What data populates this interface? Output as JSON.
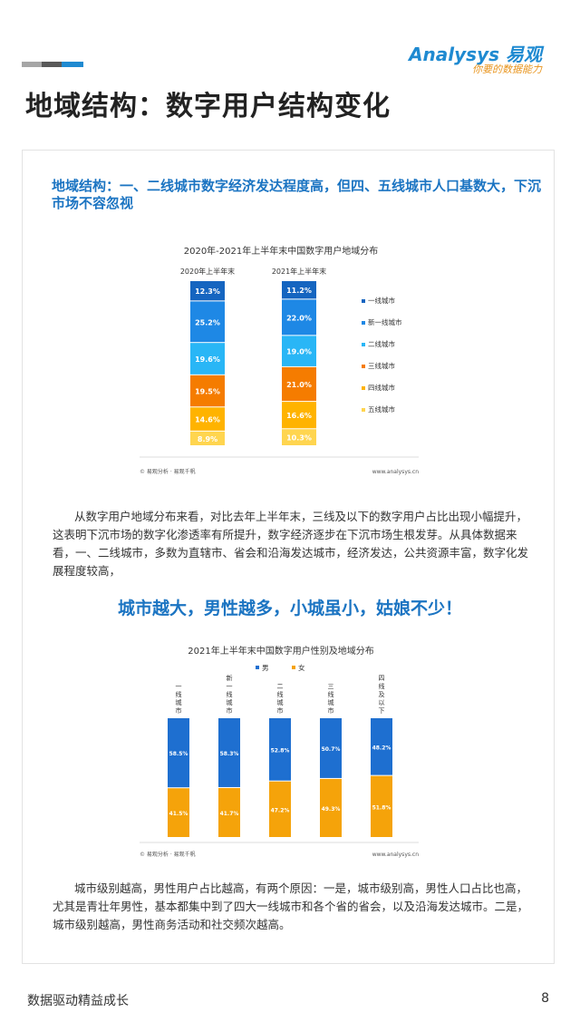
{
  "header": {
    "brand": "Analysys 易观",
    "tagline": "你要的数据能力",
    "title": "地域结构：数字用户结构变化",
    "bar_colors": [
      "#a6a6a6",
      "#595959",
      "#1f8ad1"
    ]
  },
  "section1": {
    "headline": "地域结构：一、二线城市数字经济发达程度高，但四、五线城市人口基数大，下沉市场不容忽视",
    "paragraph": "从数字用户地域分布来看，对比去年上半年末，三线及以下的数字用户占比出现小幅提升，这表明下沉市场的数字化渗透率有所提升，数字经济逐步在下沉市场生根发芽。从具体数据来看，一、二线城市，多数为直辖市、省会和沿海发达城市，经济发达，公共资源丰富，数字化发展程度较高，"
  },
  "slogan": "城市越大，男性越多，小城虽小，姑娘不少！",
  "section2": {
    "paragraph": "城市级别越高，男性用户占比越高，有两个原因：一是，城市级别高，男性人口占比也高，尤其是青壮年男性，基本都集中到了四大一线城市和各个省的省会，以及沿海发达城市。二是，城市级别越高，男性商务活动和社交频次越高。"
  },
  "footer": {
    "left": "数据驱动精益成长",
    "page": "8"
  },
  "chart_data": [
    {
      "type": "bar",
      "stacked": true,
      "title": "2020年-2021年上半年末中国数字用户地域分布",
      "categories": [
        "2020年上半年末",
        "2021年上半年末"
      ],
      "series": [
        {
          "name": "一线城市",
          "color": "#1565c0",
          "values": [
            12.3,
            11.2
          ],
          "labels": [
            "12.3%",
            "11.2%"
          ]
        },
        {
          "name": "新一线城市",
          "color": "#1e88e5",
          "values": [
            25.2,
            22.0
          ],
          "labels": [
            "25.2%",
            "22.0%"
          ]
        },
        {
          "name": "二线城市",
          "color": "#29b6f6",
          "values": [
            19.6,
            19.0
          ],
          "labels": [
            "19.6%",
            "19.0%"
          ]
        },
        {
          "name": "三线城市",
          "color": "#f57c00",
          "values": [
            19.5,
            21.0
          ],
          "labels": [
            "19.5%",
            "21.0%"
          ]
        },
        {
          "name": "四线城市",
          "color": "#ffb300",
          "values": [
            14.6,
            16.6
          ],
          "labels": [
            "14.6%",
            "16.6%"
          ]
        },
        {
          "name": "五线城市",
          "color": "#ffd54f",
          "values": [
            8.9,
            10.3
          ],
          "labels": [
            "8.9%",
            "10.3%"
          ]
        }
      ],
      "source": "© 易观分析 · 易观千帆",
      "website": "www.analysys.cn"
    },
    {
      "type": "bar",
      "stacked": true,
      "title": "2021年上半年末中国数字用户性别及地域分布",
      "categories": [
        "一线城市",
        "新一线城市",
        "二线城市",
        "三线城市",
        "四线及以下"
      ],
      "series": [
        {
          "name": "男",
          "color": "#1e6fd0",
          "values": [
            58.5,
            58.3,
            52.8,
            50.7,
            48.2
          ],
          "labels": [
            "58.5%",
            "58.3%",
            "52.8%",
            "50.7%",
            "48.2%"
          ]
        },
        {
          "name": "女",
          "color": "#f5a30a",
          "values": [
            41.5,
            41.7,
            47.2,
            49.3,
            51.8
          ],
          "labels": [
            "41.5%",
            "41.7%",
            "47.2%",
            "49.3%",
            "51.8%"
          ]
        }
      ],
      "source": "© 易观分析 · 易观千帆",
      "website": "www.analysys.cn"
    }
  ]
}
